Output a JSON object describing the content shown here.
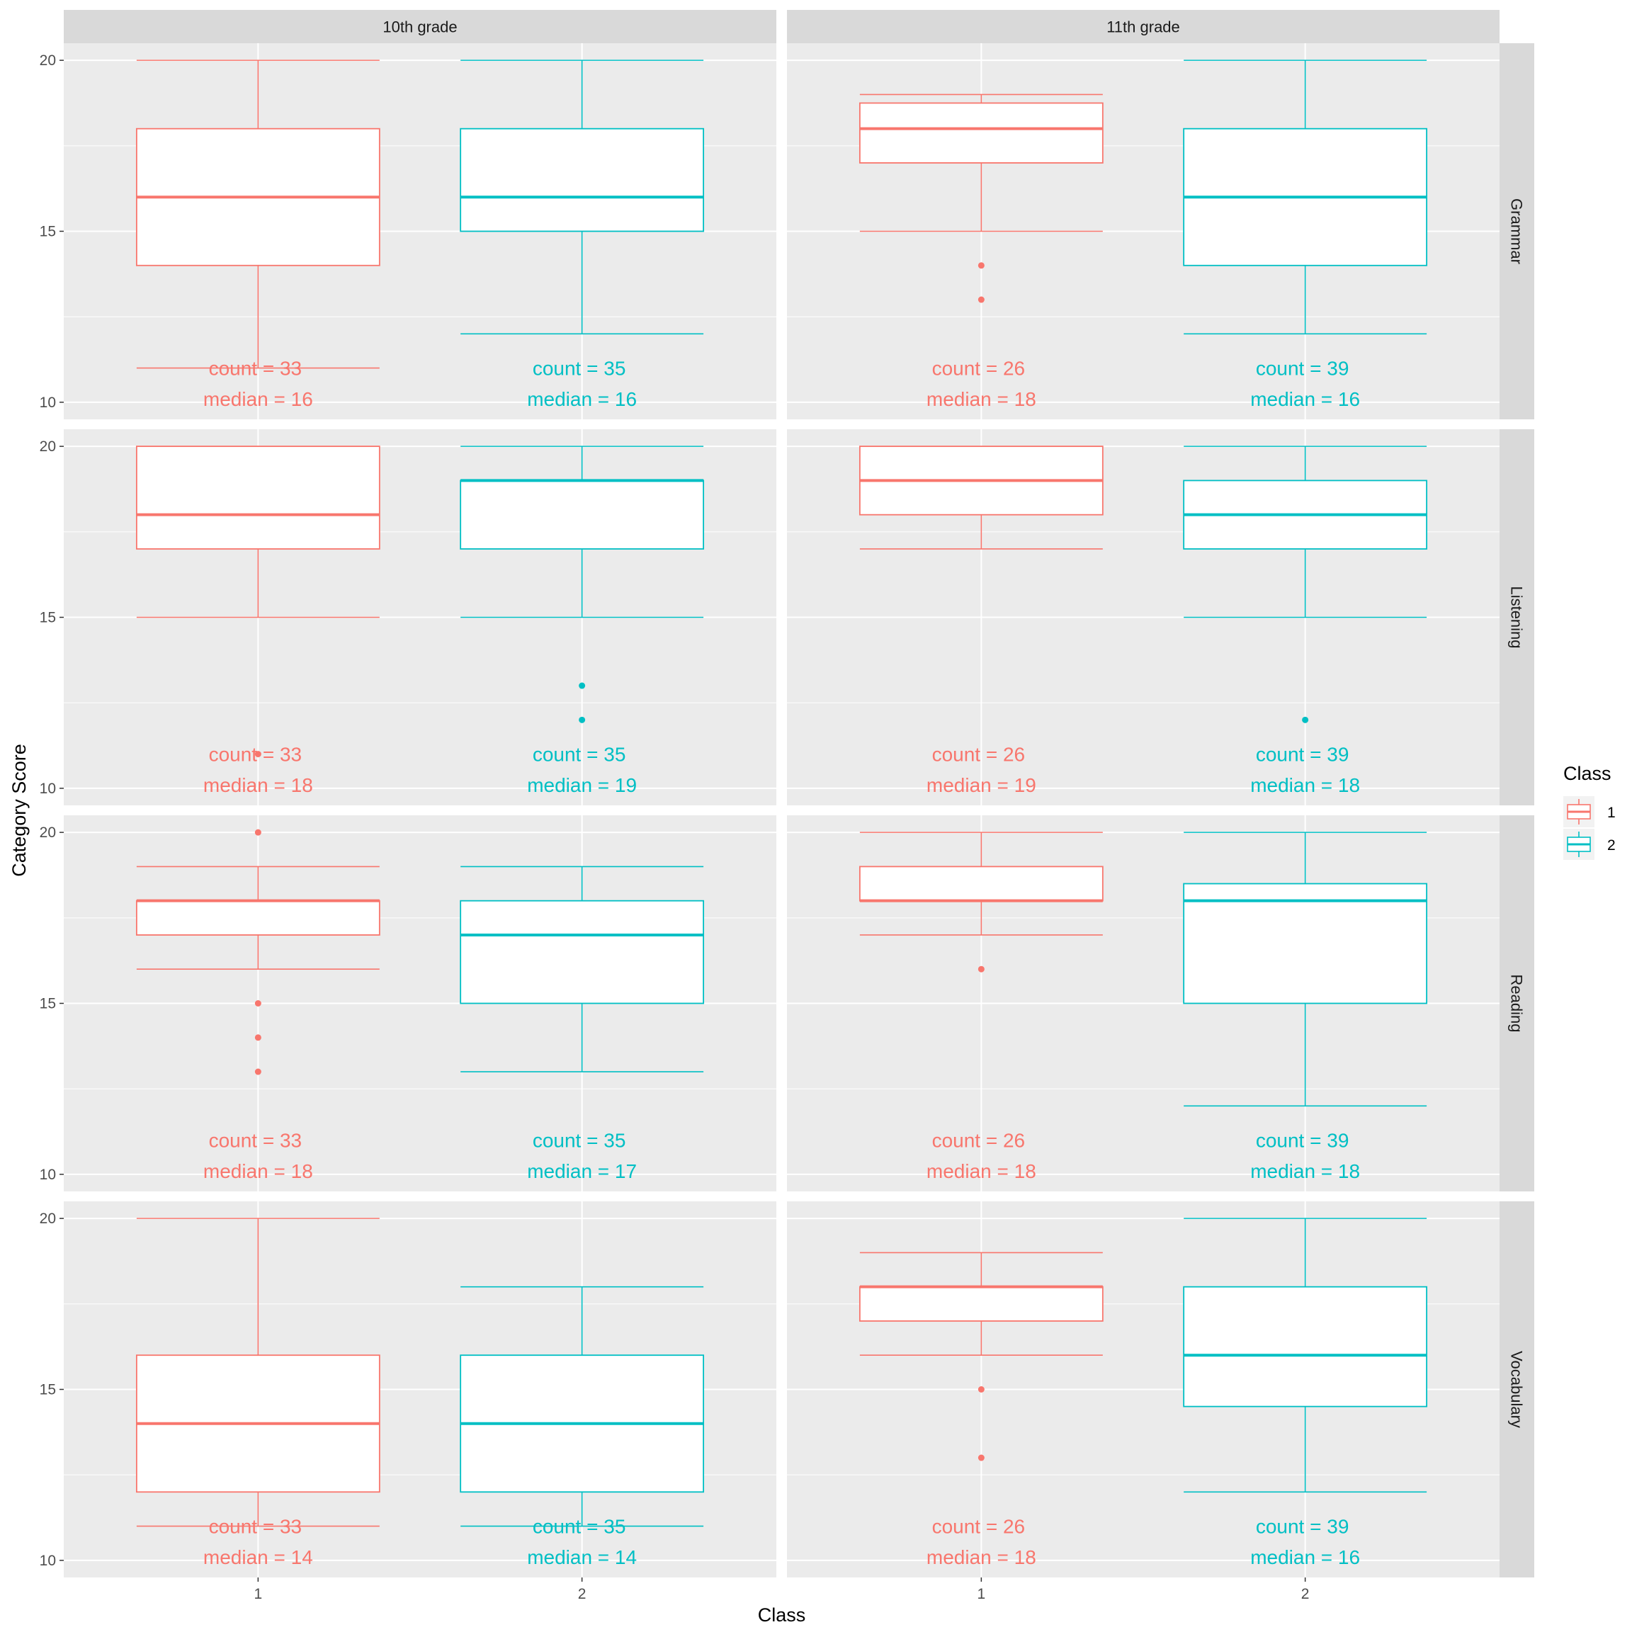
{
  "chart_data": {
    "type": "box",
    "xlabel": "Class",
    "ylabel": "Category Score",
    "ylim": [
      9.5,
      20.5
    ],
    "y_ticks": [
      10,
      15,
      20
    ],
    "categories": [
      "1",
      "2"
    ],
    "col_facets": [
      "10th grade",
      "11th grade"
    ],
    "row_facets": [
      "Grammar",
      "Listening",
      "Reading",
      "Vocabulary"
    ],
    "legend": {
      "title": "Class",
      "position": "right",
      "items": [
        {
          "label": "1",
          "color": "#F8766D"
        },
        {
          "label": "2",
          "color": "#00BFC4"
        }
      ]
    },
    "colors": {
      "1": "#F8766D",
      "2": "#00BFC4"
    },
    "panel_background": "#EBEBEB",
    "grid": true,
    "panels": [
      {
        "row": "Grammar",
        "col": "10th grade",
        "boxes": [
          {
            "class": "1",
            "lower_whisker": 11,
            "q1": 14,
            "median": 16,
            "q3": 18,
            "upper_whisker": 20,
            "outliers": [],
            "count_label": "count = 33",
            "median_label": "median = 16"
          },
          {
            "class": "2",
            "lower_whisker": 12,
            "q1": 15,
            "median": 16,
            "q3": 18,
            "upper_whisker": 20,
            "outliers": [],
            "count_label": "count = 35",
            "median_label": "median = 16"
          }
        ]
      },
      {
        "row": "Grammar",
        "col": "11th grade",
        "boxes": [
          {
            "class": "1",
            "lower_whisker": 15,
            "q1": 17,
            "median": 18,
            "q3": 18.75,
            "upper_whisker": 19,
            "outliers": [
              13,
              14
            ],
            "count_label": "count = 26",
            "median_label": "median = 18"
          },
          {
            "class": "2",
            "lower_whisker": 12,
            "q1": 14,
            "median": 16,
            "q3": 18,
            "upper_whisker": 20,
            "outliers": [],
            "count_label": "count = 39",
            "median_label": "median = 16"
          }
        ]
      },
      {
        "row": "Listening",
        "col": "10th grade",
        "boxes": [
          {
            "class": "1",
            "lower_whisker": 15,
            "q1": 17,
            "median": 18,
            "q3": 20,
            "upper_whisker": 20,
            "outliers": [
              11
            ],
            "count_label": "count = 33",
            "median_label": "median = 18"
          },
          {
            "class": "2",
            "lower_whisker": 15,
            "q1": 17,
            "median": 19,
            "q3": 19,
            "upper_whisker": 20,
            "outliers": [
              12,
              13
            ],
            "count_label": "count = 35",
            "median_label": "median = 19"
          }
        ]
      },
      {
        "row": "Listening",
        "col": "11th grade",
        "boxes": [
          {
            "class": "1",
            "lower_whisker": 17,
            "q1": 18,
            "median": 19,
            "q3": 20,
            "upper_whisker": 20,
            "outliers": [],
            "count_label": "count = 26",
            "median_label": "median = 19"
          },
          {
            "class": "2",
            "lower_whisker": 15,
            "q1": 17,
            "median": 18,
            "q3": 19,
            "upper_whisker": 20,
            "outliers": [
              12
            ],
            "count_label": "count = 39",
            "median_label": "median = 18"
          }
        ]
      },
      {
        "row": "Reading",
        "col": "10th grade",
        "boxes": [
          {
            "class": "1",
            "lower_whisker": 16,
            "q1": 17,
            "median": 18,
            "q3": 18,
            "upper_whisker": 19,
            "outliers": [
              13,
              14,
              15,
              20
            ],
            "count_label": "count = 33",
            "median_label": "median = 18"
          },
          {
            "class": "2",
            "lower_whisker": 13,
            "q1": 15,
            "median": 17,
            "q3": 18,
            "upper_whisker": 19,
            "outliers": [],
            "count_label": "count = 35",
            "median_label": "median = 17"
          }
        ]
      },
      {
        "row": "Reading",
        "col": "11th grade",
        "boxes": [
          {
            "class": "1",
            "lower_whisker": 17,
            "q1": 18,
            "median": 18,
            "q3": 19,
            "upper_whisker": 20,
            "outliers": [
              16
            ],
            "count_label": "count = 26",
            "median_label": "median = 18"
          },
          {
            "class": "2",
            "lower_whisker": 12,
            "q1": 15,
            "median": 18,
            "q3": 18.5,
            "upper_whisker": 20,
            "outliers": [],
            "count_label": "count = 39",
            "median_label": "median = 18"
          }
        ]
      },
      {
        "row": "Vocabulary",
        "col": "10th grade",
        "boxes": [
          {
            "class": "1",
            "lower_whisker": 11,
            "q1": 12,
            "median": 14,
            "q3": 16,
            "upper_whisker": 20,
            "outliers": [],
            "count_label": "count = 33",
            "median_label": "median = 14"
          },
          {
            "class": "2",
            "lower_whisker": 11,
            "q1": 12,
            "median": 14,
            "q3": 16,
            "upper_whisker": 18,
            "outliers": [],
            "count_label": "count = 35",
            "median_label": "median = 14"
          }
        ]
      },
      {
        "row": "Vocabulary",
        "col": "11th grade",
        "boxes": [
          {
            "class": "1",
            "lower_whisker": 16,
            "q1": 17,
            "median": 18,
            "q3": 18,
            "upper_whisker": 19,
            "outliers": [
              13,
              15
            ],
            "count_label": "count = 26",
            "median_label": "median = 18"
          },
          {
            "class": "2",
            "lower_whisker": 12,
            "q1": 14.5,
            "median": 16,
            "q3": 18,
            "upper_whisker": 20,
            "outliers": [],
            "count_label": "count = 39",
            "median_label": "median = 16"
          }
        ]
      }
    ]
  }
}
